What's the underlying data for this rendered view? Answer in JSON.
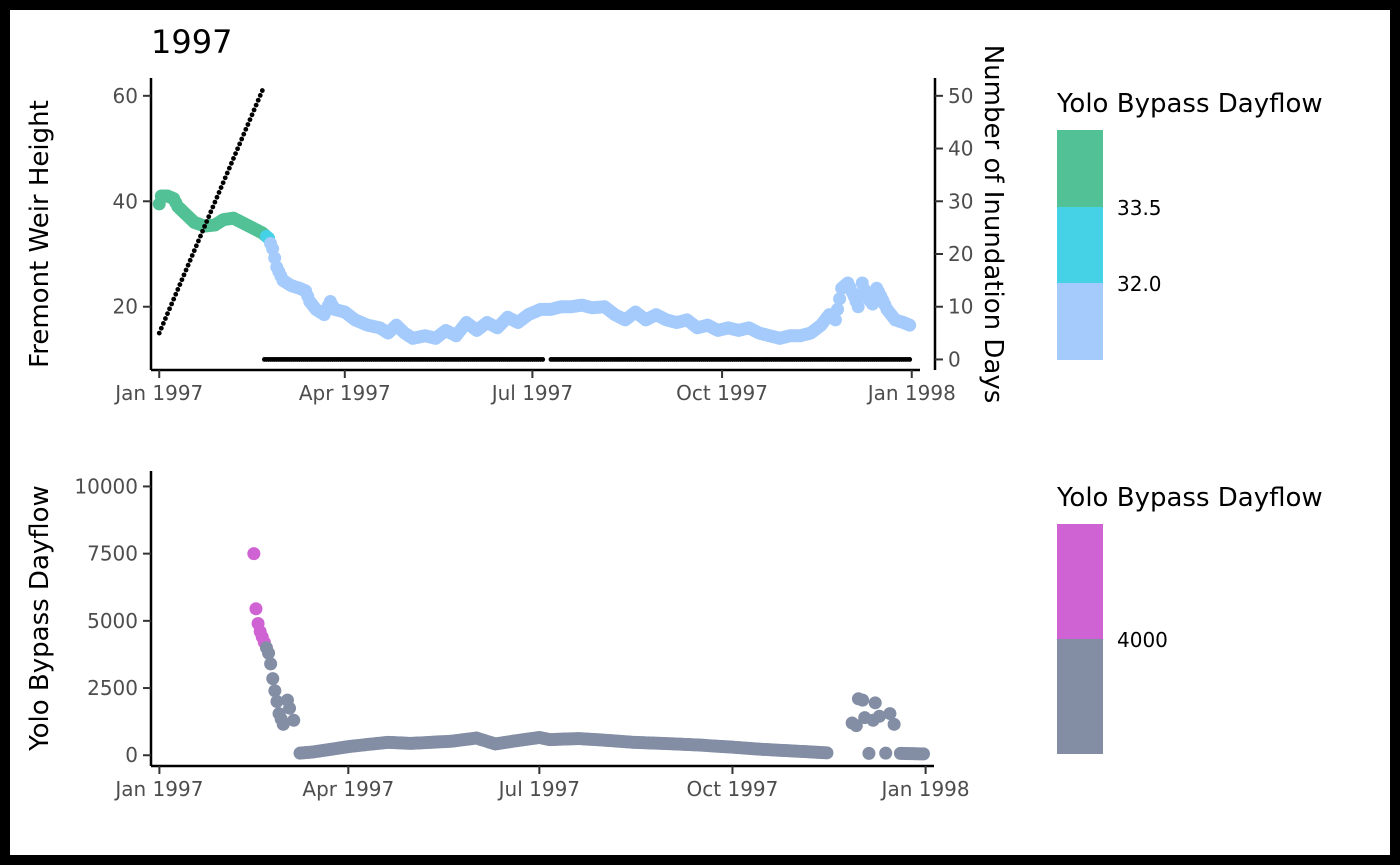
{
  "chart_data": [
    {
      "type": "scatter",
      "title": "1997",
      "ylabel": "Fremont Weir Height",
      "y2label": "Number of Inundation Days",
      "xlim": [
        "1996-12-28",
        "1998-01-05"
      ],
      "ylim": [
        8,
        63
      ],
      "y2lim": [
        -2,
        53
      ],
      "xticks": [
        {
          "date": "1997-01-01",
          "label": "Jan 1997"
        },
        {
          "date": "1997-04-01",
          "label": "Apr 1997"
        },
        {
          "date": "1997-07-01",
          "label": "Jul 1997"
        },
        {
          "date": "1997-10-01",
          "label": "Oct 1997"
        },
        {
          "date": "1998-01-01",
          "label": "Jan 1998"
        }
      ],
      "yticks": [
        20,
        40,
        60
      ],
      "y2ticks": [
        0,
        10,
        20,
        30,
        40,
        50
      ],
      "colors": {
        "high": "#52c196",
        "mid": "#45d1e6",
        "low": "#a4cbfb",
        "days": "#000000"
      },
      "legend": {
        "title": "Yolo Bypass Dayflow",
        "labels": [
          "33.5",
          "32.0"
        ],
        "colors": [
          "#52c196",
          "#45d1e6",
          "#a4cbfb"
        ],
        "placement": "right"
      },
      "inundation_days": [
        {
          "from": "1997-01-01",
          "to": "1997-02-20",
          "start": 5,
          "end": 51
        },
        {
          "from": "1997-02-21",
          "to": "1997-07-06",
          "value": 0
        },
        {
          "from": "1997-07-10",
          "to": "1997-12-31",
          "value": 0
        }
      ],
      "weir_height": [
        [
          "1997-01-01",
          39.5
        ],
        [
          "1997-01-02",
          41
        ],
        [
          "1997-01-05",
          41
        ],
        [
          "1997-01-08",
          40.5
        ],
        [
          "1997-01-10",
          39
        ],
        [
          "1997-01-14",
          37.5
        ],
        [
          "1997-01-18",
          36
        ],
        [
          "1997-01-23",
          35.3
        ],
        [
          "1997-01-28",
          35.5
        ],
        [
          "1997-02-01",
          36.5
        ],
        [
          "1997-02-06",
          36.8
        ],
        [
          "1997-02-10",
          36
        ],
        [
          "1997-02-15",
          35
        ],
        [
          "1997-02-20",
          34
        ],
        [
          "1997-02-23",
          33
        ],
        [
          "1997-02-25",
          31
        ],
        [
          "1997-02-27",
          27.5
        ],
        [
          "1997-03-02",
          25
        ],
        [
          "1997-03-06",
          24
        ],
        [
          "1997-03-10",
          23.5
        ],
        [
          "1997-03-13",
          23
        ],
        [
          "1997-03-15",
          21
        ],
        [
          "1997-03-18",
          19.5
        ],
        [
          "1997-03-22",
          18.5
        ],
        [
          "1997-03-25",
          21
        ],
        [
          "1997-03-27",
          19.5
        ],
        [
          "1997-04-01",
          19
        ],
        [
          "1997-04-06",
          17.5
        ],
        [
          "1997-04-12",
          16.5
        ],
        [
          "1997-04-18",
          16
        ],
        [
          "1997-04-22",
          15
        ],
        [
          "1997-04-26",
          16.5
        ],
        [
          "1997-04-30",
          15
        ],
        [
          "1997-05-04",
          14
        ],
        [
          "1997-05-10",
          14.5
        ],
        [
          "1997-05-15",
          14
        ],
        [
          "1997-05-20",
          15.5
        ],
        [
          "1997-05-25",
          14.5
        ],
        [
          "1997-05-30",
          17
        ],
        [
          "1997-06-04",
          15.5
        ],
        [
          "1997-06-09",
          17
        ],
        [
          "1997-06-14",
          16
        ],
        [
          "1997-06-19",
          18
        ],
        [
          "1997-06-24",
          17
        ],
        [
          "1997-06-29",
          18.5
        ],
        [
          "1997-07-05",
          19.5
        ],
        [
          "1997-07-10",
          19.5
        ],
        [
          "1997-07-15",
          20
        ],
        [
          "1997-07-20",
          20
        ],
        [
          "1997-07-25",
          20.3
        ],
        [
          "1997-07-30",
          19.8
        ],
        [
          "1997-08-05",
          20
        ],
        [
          "1997-08-10",
          18.5
        ],
        [
          "1997-08-15",
          17.5
        ],
        [
          "1997-08-20",
          19
        ],
        [
          "1997-08-25",
          17.5
        ],
        [
          "1997-08-30",
          18.5
        ],
        [
          "1997-09-04",
          17.5
        ],
        [
          "1997-09-09",
          17
        ],
        [
          "1997-09-14",
          17.5
        ],
        [
          "1997-09-19",
          16
        ],
        [
          "1997-09-24",
          16.5
        ],
        [
          "1997-09-29",
          15.5
        ],
        [
          "1997-10-04",
          16
        ],
        [
          "1997-10-09",
          15.5
        ],
        [
          "1997-10-14",
          16
        ],
        [
          "1997-10-19",
          15
        ],
        [
          "1997-10-24",
          14.5
        ],
        [
          "1997-10-29",
          14
        ],
        [
          "1997-11-03",
          14.5
        ],
        [
          "1997-11-08",
          14.5
        ],
        [
          "1997-11-13",
          15
        ],
        [
          "1997-11-18",
          16.5
        ],
        [
          "1997-11-22",
          18.5
        ],
        [
          "1997-11-25",
          17.5
        ],
        [
          "1997-11-27",
          21.5
        ],
        [
          "1997-11-28",
          23.5
        ],
        [
          "1997-12-01",
          24.5
        ],
        [
          "1997-12-04",
          22
        ],
        [
          "1997-12-06",
          20
        ],
        [
          "1997-12-08",
          24.5
        ],
        [
          "1997-12-10",
          22
        ],
        [
          "1997-12-13",
          20.5
        ],
        [
          "1997-12-15",
          23.5
        ],
        [
          "1997-12-17",
          22
        ],
        [
          "1997-12-20",
          19.5
        ],
        [
          "1997-12-24",
          17.5
        ],
        [
          "1997-12-28",
          17
        ],
        [
          "1997-12-31",
          16.5
        ]
      ]
    },
    {
      "type": "scatter",
      "ylabel": "Yolo Bypass Dayflow",
      "xlim": [
        "1996-12-28",
        "1998-01-05"
      ],
      "ylim": [
        -400,
        10500
      ],
      "xticks": [
        {
          "date": "1997-01-01",
          "label": "Jan 1997"
        },
        {
          "date": "1997-04-01",
          "label": "Apr 1997"
        },
        {
          "date": "1997-07-01",
          "label": "Jul 1997"
        },
        {
          "date": "1997-10-01",
          "label": "Oct 1997"
        },
        {
          "date": "1998-01-01",
          "label": "Jan 1998"
        }
      ],
      "yticks": [
        0,
        2500,
        5000,
        7500,
        10000
      ],
      "colors": {
        "high": "#cf63d3",
        "low": "#838ea5"
      },
      "legend": {
        "title": "Yolo Bypass Dayflow",
        "labels": [
          "4000"
        ],
        "colors": [
          "#cf63d3",
          "#838ea5"
        ],
        "placement": "right"
      },
      "dayflow": [
        [
          "1997-02-15",
          7500
        ],
        [
          "1997-02-16",
          5450
        ],
        [
          "1997-02-17",
          4900
        ],
        [
          "1997-02-18",
          4600
        ],
        [
          "1997-02-19",
          4400
        ],
        [
          "1997-02-20",
          4200
        ],
        [
          "1997-02-21",
          4000
        ],
        [
          "1997-02-22",
          3800
        ],
        [
          "1997-02-23",
          3400
        ],
        [
          "1997-02-24",
          2850
        ],
        [
          "1997-02-25",
          2400
        ],
        [
          "1997-02-26",
          2000
        ],
        [
          "1997-02-27",
          1550
        ],
        [
          "1997-02-28",
          1350
        ],
        [
          "1997-03-01",
          1150
        ],
        [
          "1997-03-03",
          2050
        ],
        [
          "1997-03-04",
          1750
        ],
        [
          "1997-03-06",
          1300
        ],
        [
          "1997-03-09",
          80
        ],
        [
          "1997-03-15",
          120
        ],
        [
          "1997-03-22",
          200
        ],
        [
          "1997-04-01",
          320
        ],
        [
          "1997-04-10",
          400
        ],
        [
          "1997-04-20",
          480
        ],
        [
          "1997-05-01",
          440
        ],
        [
          "1997-05-10",
          480
        ],
        [
          "1997-05-20",
          520
        ],
        [
          "1997-06-01",
          640
        ],
        [
          "1997-06-10",
          420
        ],
        [
          "1997-06-20",
          540
        ],
        [
          "1997-07-01",
          660
        ],
        [
          "1997-07-06",
          580
        ],
        [
          "1997-07-12",
          600
        ],
        [
          "1997-07-20",
          620
        ],
        [
          "1997-08-01",
          560
        ],
        [
          "1997-08-15",
          480
        ],
        [
          "1997-09-01",
          430
        ],
        [
          "1997-09-15",
          380
        ],
        [
          "1997-10-01",
          300
        ],
        [
          "1997-10-15",
          220
        ],
        [
          "1997-11-01",
          150
        ],
        [
          "1997-11-15",
          90
        ],
        [
          "1997-11-27",
          1200
        ],
        [
          "1997-11-29",
          1100
        ],
        [
          "1997-11-30",
          2100
        ],
        [
          "1997-12-02",
          2050
        ],
        [
          "1997-12-03",
          1400
        ],
        [
          "1997-12-05",
          70
        ],
        [
          "1997-12-07",
          1300
        ],
        [
          "1997-12-08",
          1950
        ],
        [
          "1997-12-10",
          1450
        ],
        [
          "1997-12-13",
          80
        ],
        [
          "1997-12-15",
          1550
        ],
        [
          "1997-12-17",
          1150
        ],
        [
          "1997-12-20",
          70
        ],
        [
          "1997-12-25",
          60
        ],
        [
          "1997-12-31",
          50
        ]
      ]
    }
  ]
}
